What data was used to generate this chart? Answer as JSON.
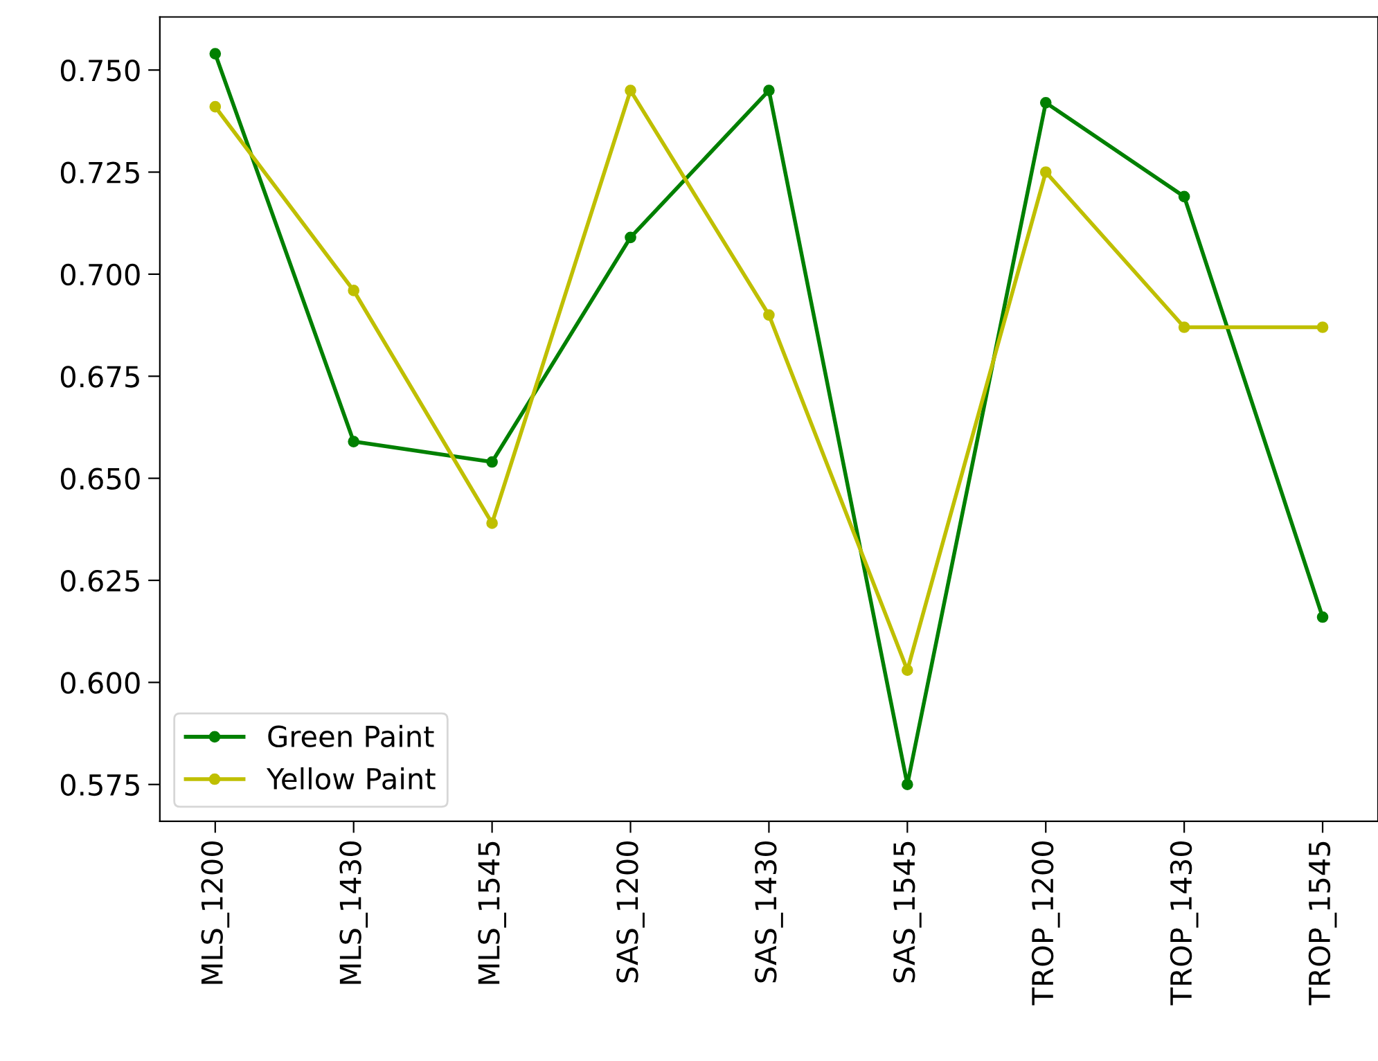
{
  "chart_data": {
    "type": "line",
    "categories": [
      "MLS_1200",
      "MLS_1430",
      "MLS_1545",
      "SAS_1200",
      "SAS_1430",
      "SAS_1545",
      "TROP_1200",
      "TROP_1430",
      "TROP_1545"
    ],
    "series": [
      {
        "name": "Green Paint",
        "color": "#008000",
        "values": [
          0.754,
          0.659,
          0.654,
          0.709,
          0.745,
          0.575,
          0.742,
          0.719,
          0.616
        ]
      },
      {
        "name": "Yellow Paint",
        "color": "#bfbf00",
        "values": [
          0.741,
          0.696,
          0.639,
          0.745,
          0.69,
          0.603,
          0.725,
          0.687,
          0.687
        ]
      }
    ],
    "ylim": [
      0.566,
      0.763
    ],
    "yticks": [
      {
        "value": 0.575,
        "label": "0.575"
      },
      {
        "value": 0.6,
        "label": "0.600"
      },
      {
        "value": 0.625,
        "label": "0.625"
      },
      {
        "value": 0.65,
        "label": "0.650"
      },
      {
        "value": 0.675,
        "label": "0.675"
      },
      {
        "value": 0.7,
        "label": "0.700"
      },
      {
        "value": 0.725,
        "label": "0.725"
      },
      {
        "value": 0.75,
        "label": "0.750"
      }
    ],
    "marker": "circle",
    "line_style": "solid",
    "legend": "bottom left",
    "grid": false
  }
}
